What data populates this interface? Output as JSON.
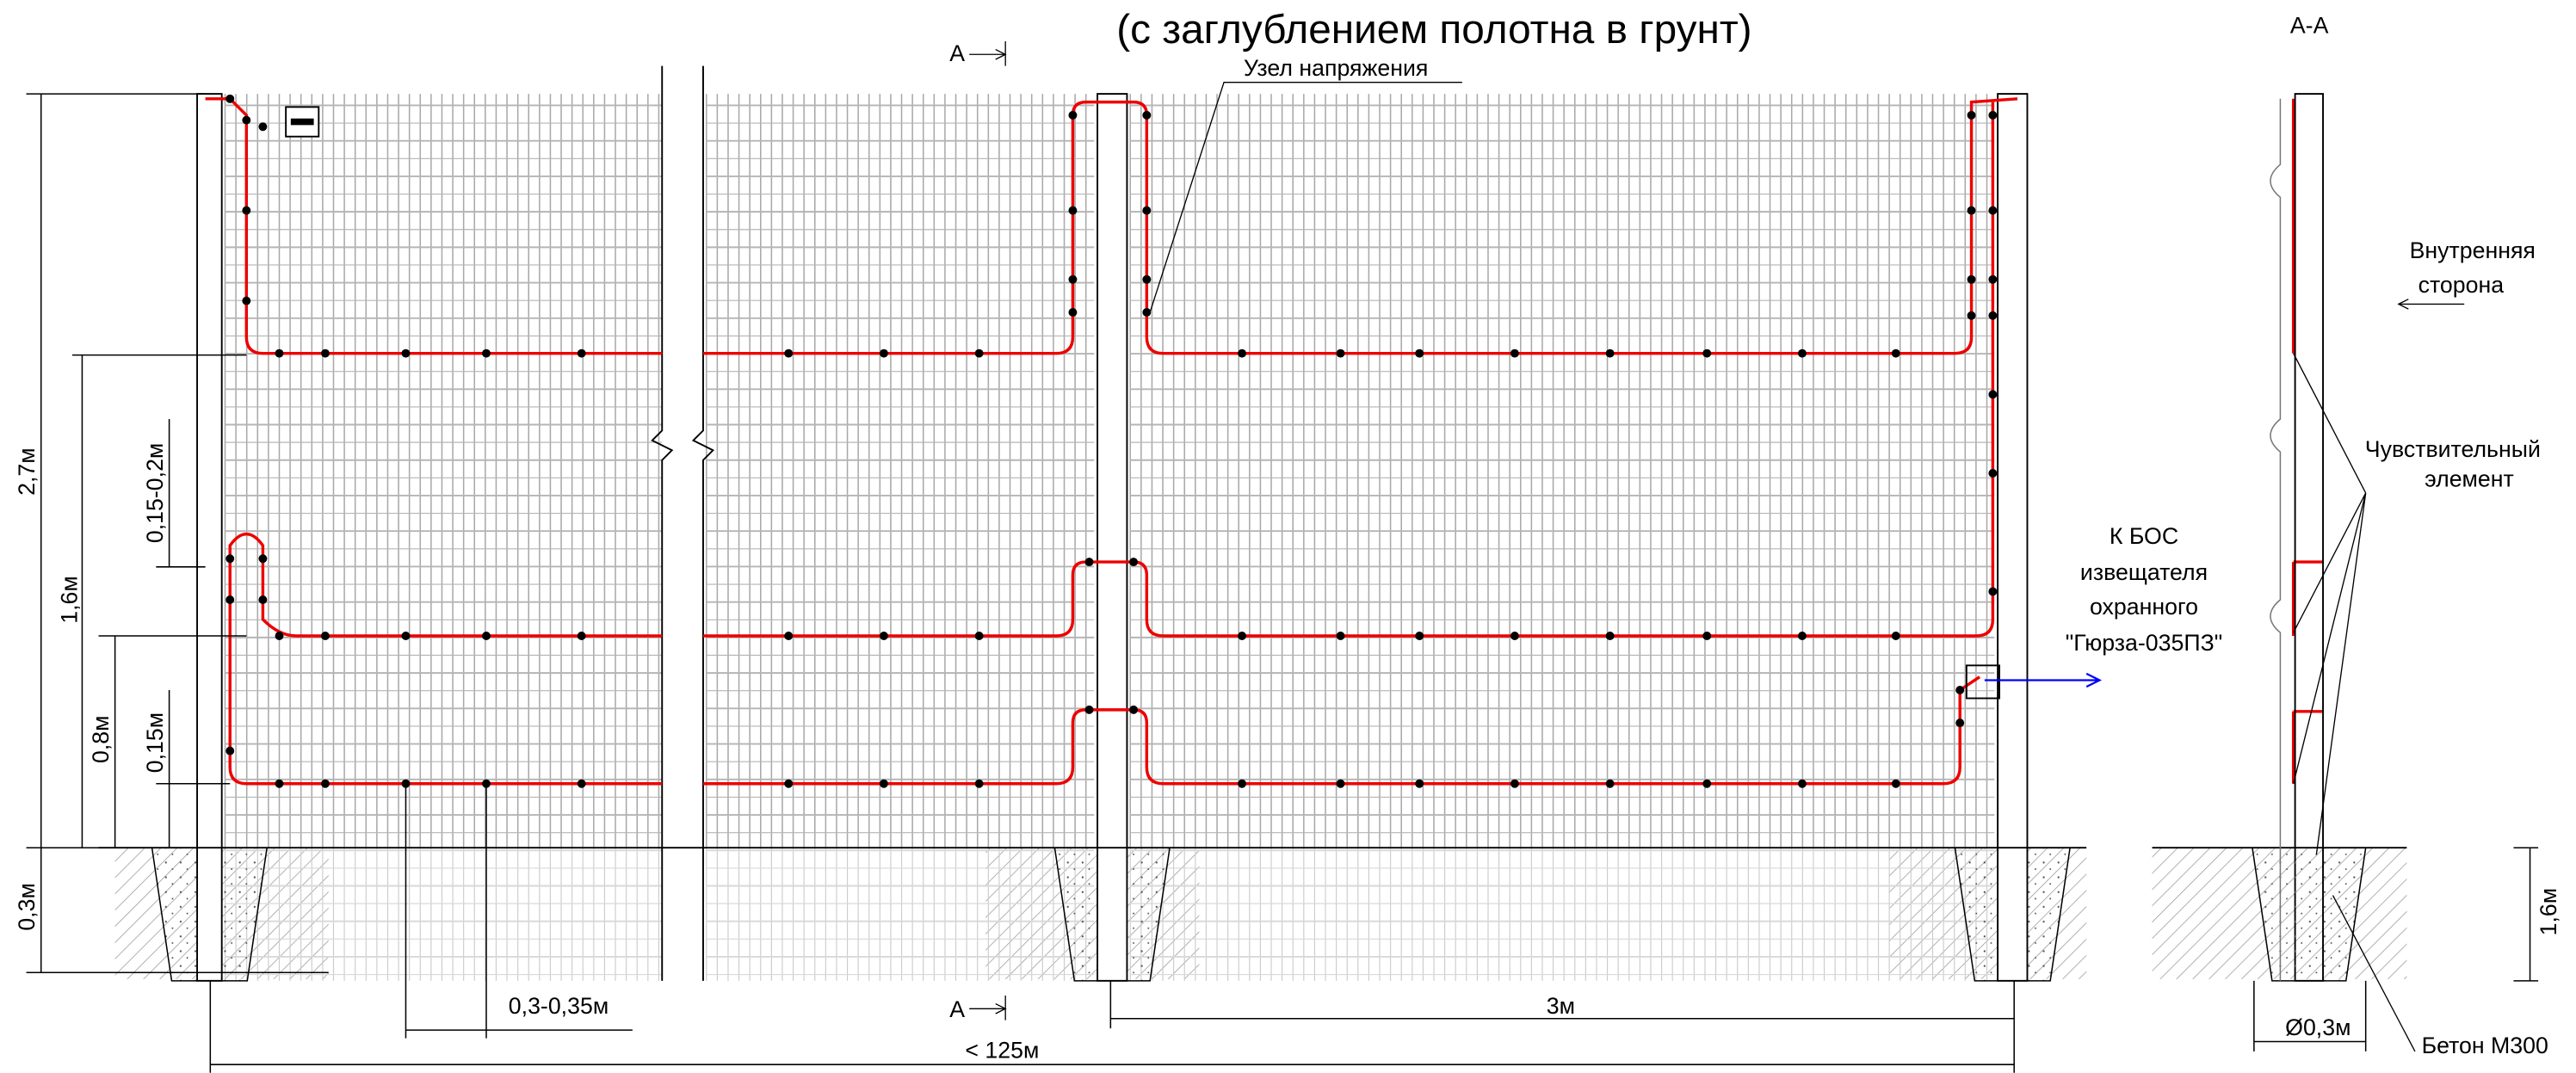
{
  "header": {
    "title": "(с заглублением полотна в грунт)"
  },
  "labels": {
    "section_mark_top": "А",
    "section_mark_bottom": "А",
    "tension_node": "Узел напряжения",
    "section_title": "А-А",
    "inner_side": [
      "Внутренняя",
      "сторона"
    ],
    "sensing_element": [
      "Чувствительный",
      "элемент"
    ],
    "bos": [
      "К БОС",
      "извещателя",
      "охранного",
      "\"Гюрза-035ПЗ\""
    ],
    "concrete": "Бетон М300"
  },
  "dimensions": {
    "height_total": "2,7м",
    "depth": "0,3м",
    "height_wire_top": "1,6м",
    "wire_gap": "0,15-0,2м",
    "height_wire_mid": "0,8м",
    "height_wire_low": "0,15м",
    "wire_step": "0,3-0,35м",
    "post_span": "3м",
    "length": "< 125м",
    "section_height": "1,6м",
    "diameter": "Ø0,3м"
  }
}
